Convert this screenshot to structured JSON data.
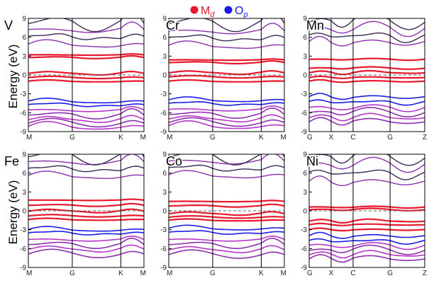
{
  "legend": [
    {
      "symbol": "M",
      "subscript": "d",
      "color": "#e8192c"
    },
    {
      "symbol": "O",
      "subscript": "p",
      "color": "#1a1ae6"
    }
  ],
  "ylabel": "Energy (eV)",
  "colors": {
    "m_d": "#e8192c",
    "o_p": "#1a1ae6",
    "mixed": "#8b2fb0",
    "dark": "#3a2a55",
    "fermi": "#666666",
    "frame": "#000000"
  },
  "chart_data": [
    {
      "type": "line",
      "title": "V",
      "ylim": [
        -9,
        9
      ],
      "yticks": [
        -9,
        -6,
        -3,
        0,
        3,
        6,
        9
      ],
      "xticks": [
        "M",
        "G",
        "K",
        "M"
      ],
      "fermi_level": 0,
      "bands": {
        "m_d_levels": [
          3.2,
          2.8,
          0.3,
          -0.4,
          -1.0
        ],
        "o_p_levels": [
          -4.2,
          -4.8,
          -5.6,
          -6.3,
          -7.0,
          -7.6,
          -8.2
        ],
        "upper_levels": [
          4.8,
          6.0,
          7.2,
          8.4
        ]
      }
    },
    {
      "type": "line",
      "title": "Cr",
      "ylim": [
        -9,
        9
      ],
      "yticks": [
        -9,
        -6,
        -3,
        0,
        3,
        6,
        9
      ],
      "xticks": [
        "M",
        "G",
        "K",
        "M"
      ],
      "fermi_level": 0,
      "bands": {
        "m_d_levels": [
          2.4,
          2.0,
          0.4,
          -0.3,
          -1.0
        ],
        "o_p_levels": [
          -4.0,
          -4.6,
          -5.5,
          -6.2,
          -6.9,
          -7.5,
          -8.1
        ],
        "upper_levels": [
          4.6,
          5.8,
          7.0,
          8.4
        ]
      }
    },
    {
      "type": "line",
      "title": "Mn",
      "ylim": [
        -9,
        9
      ],
      "yticks": [
        -9,
        -6,
        -3,
        0,
        3,
        6,
        9
      ],
      "xticks": [
        "G",
        "X",
        "C",
        "G",
        "Z"
      ],
      "fermi_level": 0,
      "bands": {
        "m_d_levels": [
          2.5,
          1.1,
          0.4,
          -0.4,
          -1.0
        ],
        "o_p_levels": [
          -3.5,
          -4.3,
          -5.2,
          -5.9,
          -6.7,
          -7.4
        ],
        "upper_levels": [
          5.2,
          6.2,
          7.4,
          8.6
        ]
      }
    },
    {
      "type": "line",
      "title": "Fe",
      "ylim": [
        -9,
        9
      ],
      "yticks": [
        -9,
        -6,
        -3,
        0,
        3,
        6,
        9
      ],
      "xticks": [
        "M",
        "G",
        "K",
        "M"
      ],
      "fermi_level": 0,
      "bands": {
        "m_d_levels": [
          1.7,
          0.9,
          0.0,
          -0.8,
          -1.4
        ],
        "o_p_levels": [
          -3.0,
          -3.6,
          -4.6,
          -5.3,
          -6.0,
          -6.8
        ],
        "upper_levels": [
          5.5,
          6.6,
          7.8,
          8.8
        ]
      }
    },
    {
      "type": "line",
      "title": "Co",
      "ylim": [
        -9,
        9
      ],
      "yticks": [
        -9,
        -6,
        -3,
        0,
        3,
        6,
        9
      ],
      "xticks": [
        "M",
        "G",
        "K",
        "M"
      ],
      "fermi_level": 0,
      "bands": {
        "m_d_levels": [
          1.5,
          0.8,
          -0.4,
          -1.0,
          -1.5
        ],
        "o_p_levels": [
          -2.8,
          -3.5,
          -4.6,
          -5.3,
          -6.1,
          -6.9
        ],
        "upper_levels": [
          5.6,
          6.7,
          7.9,
          8.8
        ]
      }
    },
    {
      "type": "line",
      "title": "Ni",
      "ylim": [
        -9,
        9
      ],
      "yticks": [
        -9,
        -6,
        -3,
        0,
        3,
        6,
        9
      ],
      "xticks": [
        "G",
        "X",
        "C",
        "G",
        "Z"
      ],
      "fermi_level": 0,
      "bands": {
        "m_d_levels": [
          0.6,
          0.2,
          -1.6,
          -2.2,
          -3.0
        ],
        "o_p_levels": [
          -4.0,
          -4.8,
          -5.5,
          -6.2,
          -6.9,
          -7.6
        ],
        "upper_levels": [
          4.6,
          6.0,
          7.4,
          8.6
        ]
      }
    }
  ]
}
